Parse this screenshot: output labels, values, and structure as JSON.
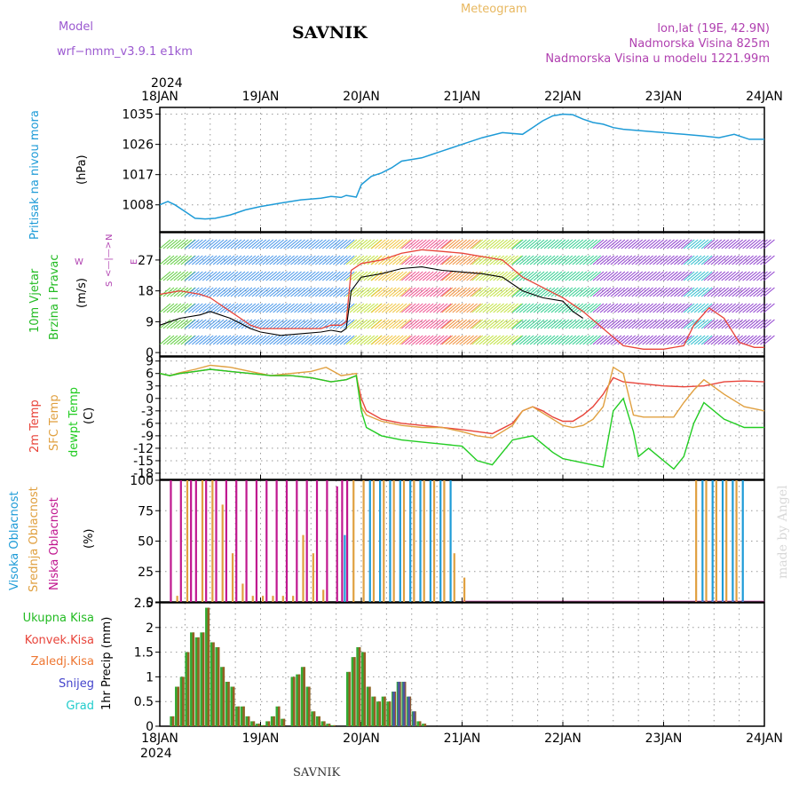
{
  "header": {
    "model_label": "Model",
    "model_name": "wrf−nmm_v3.9.1  e1km",
    "station": "SAVNIK",
    "product": "Meteogram",
    "coords": "lon,lat (19E, 42.9N)",
    "elevation": "Nadmorska Visina 825m",
    "model_elevation": "Nadmorska Visina u modelu 1221.99m",
    "year_top": "2024",
    "year_bottom": "2024",
    "footer_station": "SAVNIK",
    "watermark": "made by Angel"
  },
  "colors": {
    "pressure": "#1e9bd7",
    "temp2m": "#e8443a",
    "sfc": "#e0a040",
    "dewpt": "#22cc22",
    "high_cloud": "#1e9bd7",
    "mid_cloud": "#e0a040",
    "low_cloud": "#c0178f",
    "total_precip": "#33aa33",
    "conv_precip": "#e8443a",
    "frozen": "#ee7733",
    "snow": "#4444cc",
    "hail": "#22cccc"
  },
  "chart_data": [
    {
      "type": "line",
      "name": "pressure",
      "ylabel_1": "Pritisak na nivou mora",
      "ylabel_2": "(hPa)",
      "x_ticks": [
        "18JAN",
        "19JAN",
        "20JAN",
        "21JAN",
        "22JAN",
        "23JAN",
        "24JAN"
      ],
      "xlim_days": [
        0,
        6
      ],
      "ylim": [
        1000,
        1037
      ],
      "y_ticks": [
        "1008",
        "1017",
        "1026",
        "1035"
      ],
      "series": [
        {
          "color_key": "pressure",
          "x": [
            0,
            0.08,
            0.15,
            0.25,
            0.35,
            0.45,
            0.55,
            0.7,
            0.85,
            1.0,
            1.2,
            1.4,
            1.6,
            1.7,
            1.8,
            1.85,
            1.95,
            2.0,
            2.1,
            2.2,
            2.3,
            2.4,
            2.5,
            2.6,
            2.7,
            2.8,
            3.0,
            3.2,
            3.4,
            3.6,
            3.7,
            3.8,
            3.9,
            4.0,
            4.1,
            4.2,
            4.3,
            4.4,
            4.5,
            4.6,
            4.8,
            5.0,
            5.2,
            5.4,
            5.55,
            5.7,
            5.85,
            6.0
          ],
          "y": [
            1008,
            1009,
            1008,
            1006,
            1004,
            1003.8,
            1004,
            1005,
            1006.5,
            1007.5,
            1008.5,
            1009.5,
            1010,
            1010.5,
            1010.2,
            1010.8,
            1010.3,
            1014,
            1016.5,
            1017.5,
            1019,
            1021,
            1021.5,
            1022,
            1023,
            1024,
            1026,
            1028,
            1029.5,
            1029,
            1031,
            1033,
            1034.5,
            1035,
            1034.8,
            1033.5,
            1032.5,
            1032,
            1031,
            1030.5,
            1030,
            1029.5,
            1029,
            1028.5,
            1028,
            1029,
            1027.5,
            1027.5
          ]
        }
      ]
    },
    {
      "type": "line",
      "name": "wind",
      "ylabel_1": "10m Vjetar",
      "ylabel_2": "Brzina i Pravac",
      "ylabel_3": "(m/s)",
      "compass_n": "N",
      "compass_s": "S",
      "compass_w": "W",
      "compass_e": "E",
      "ylim": [
        -1,
        35
      ],
      "y_ticks": [
        "0",
        "9",
        "18",
        "27"
      ],
      "series": [
        {
          "name": "avg",
          "color": "#000000",
          "x": [
            0,
            0.2,
            0.4,
            0.5,
            0.6,
            0.7,
            0.8,
            0.9,
            1.0,
            1.2,
            1.4,
            1.6,
            1.7,
            1.8,
            1.85,
            1.9,
            2.0,
            2.2,
            2.4,
            2.6,
            2.8,
            3.0,
            3.2,
            3.4,
            3.6,
            3.8,
            4.0,
            4.1,
            4.2
          ],
          "y": [
            8,
            10,
            11,
            12,
            11,
            10,
            8.5,
            7,
            6,
            5,
            5.5,
            6,
            6.5,
            6,
            7,
            18,
            22,
            23,
            24.5,
            25,
            24,
            23.5,
            23,
            22,
            18,
            16,
            15,
            12,
            10
          ]
        },
        {
          "name": "gust",
          "color": "#e8443a",
          "x": [
            0,
            0.2,
            0.4,
            0.5,
            0.6,
            0.7,
            0.8,
            0.9,
            1.0,
            1.2,
            1.4,
            1.6,
            1.7,
            1.8,
            1.85,
            1.9,
            2.0,
            2.2,
            2.4,
            2.6,
            2.8,
            3.0,
            3.2,
            3.4,
            3.6,
            3.8,
            4.0,
            4.2,
            4.4,
            4.6,
            4.8,
            5.0,
            5.2,
            5.3,
            5.45,
            5.6,
            5.75,
            5.9,
            6.0
          ],
          "y": [
            17,
            18,
            17,
            16,
            14,
            12,
            10,
            8,
            7,
            7,
            7,
            7,
            8,
            8,
            9,
            24,
            26,
            27,
            29,
            30,
            29.5,
            29,
            28,
            27,
            22,
            19,
            16,
            12,
            7,
            2,
            1,
            1,
            2,
            8,
            13,
            10,
            3,
            1.5,
            1.5
          ]
        }
      ]
    },
    {
      "type": "line",
      "name": "temperature",
      "ylabel_1": "2m Temp",
      "ylabel_2": "SFC Temp",
      "ylabel_3": "dewpt Temp",
      "ylabel_4": "(C)",
      "ylim": [
        -19.5,
        10
      ],
      "y_ticks": [
        "-18",
        "-15",
        "-12",
        "-9",
        "-6",
        "-3",
        "0",
        "3",
        "6",
        "9"
      ],
      "series": [
        {
          "name": "2m",
          "color_key": "temp2m",
          "x": [
            0,
            0.1,
            0.2,
            0.35,
            0.5,
            0.7,
            0.9,
            1.1,
            1.3,
            1.5,
            1.7,
            1.85,
            1.95,
            2.0,
            2.05,
            2.2,
            2.4,
            2.6,
            2.8,
            3.0,
            3.15,
            3.3,
            3.5,
            3.6,
            3.7,
            3.8,
            3.9,
            4.0,
            4.1,
            4.2,
            4.3,
            4.4,
            4.5,
            4.6,
            4.8,
            5.0,
            5.2,
            5.4,
            5.6,
            5.8,
            6.0
          ],
          "y": [
            6,
            5.5,
            6,
            6.5,
            7,
            6.5,
            6,
            5.5,
            5.5,
            5,
            4,
            4.5,
            5.5,
            0,
            -3,
            -5,
            -6,
            -6.5,
            -7,
            -7.5,
            -8,
            -8.5,
            -6,
            -3,
            -2,
            -3,
            -4.5,
            -5.5,
            -5.5,
            -4,
            -2,
            1,
            5,
            4,
            3.5,
            3,
            2.8,
            3,
            4,
            4.2,
            4
          ]
        },
        {
          "name": "sfc",
          "color_key": "sfc",
          "x": [
            0,
            0.1,
            0.2,
            0.35,
            0.5,
            0.7,
            0.9,
            1.1,
            1.3,
            1.5,
            1.65,
            1.8,
            1.95,
            2.0,
            2.05,
            2.2,
            2.4,
            2.6,
            2.8,
            3.0,
            3.15,
            3.3,
            3.5,
            3.6,
            3.7,
            3.8,
            3.9,
            4.0,
            4.1,
            4.2,
            4.3,
            4.4,
            4.5,
            4.6,
            4.7,
            4.8,
            5.0,
            5.1,
            5.2,
            5.3,
            5.4,
            5.6,
            5.8,
            6.0
          ],
          "y": [
            6,
            5.5,
            6.2,
            7,
            8,
            7.5,
            6.5,
            5.5,
            6,
            6.5,
            7.5,
            5.5,
            6,
            -2,
            -4,
            -5.5,
            -6.5,
            -7,
            -7,
            -8,
            -9,
            -9.5,
            -6.5,
            -3,
            -2,
            -3.5,
            -5,
            -6.5,
            -7,
            -6.5,
            -5,
            -2,
            7.5,
            6,
            -4,
            -4.5,
            -4.5,
            -4.5,
            -1,
            2,
            4.5,
            1,
            -2,
            -3
          ]
        },
        {
          "name": "dewpt",
          "color_key": "dewpt",
          "x": [
            0,
            0.1,
            0.2,
            0.35,
            0.5,
            0.7,
            0.9,
            1.1,
            1.3,
            1.5,
            1.7,
            1.85,
            1.95,
            2.0,
            2.05,
            2.2,
            2.4,
            2.6,
            2.8,
            3.0,
            3.15,
            3.3,
            3.5,
            3.6,
            3.7,
            3.8,
            3.9,
            4.0,
            4.2,
            4.4,
            4.5,
            4.6,
            4.7,
            4.75,
            4.85,
            5.0,
            5.1,
            5.2,
            5.3,
            5.4,
            5.6,
            5.8,
            6.0
          ],
          "y": [
            6,
            5.5,
            6,
            6.5,
            7,
            6.5,
            6,
            5.5,
            5.5,
            5,
            4,
            4.5,
            5.5,
            -3,
            -7,
            -9,
            -10,
            -10.5,
            -11,
            -11.5,
            -15,
            -16,
            -10,
            -9.5,
            -9,
            -11,
            -13,
            -14.5,
            -15.5,
            -16.5,
            -3,
            0,
            -8,
            -14,
            -12,
            -15,
            -17,
            -14,
            -6,
            -1,
            -5,
            -7,
            -7
          ]
        }
      ]
    },
    {
      "type": "bar",
      "name": "clouds",
      "ylabel_1": "Visoka Oblacnost",
      "ylabel_2": "Srednja Oblacnost",
      "ylabel_3": "Niska Oblacnost",
      "ylabel_4": "(%)",
      "ylim": [
        0,
        100
      ],
      "y_ticks": [
        "0",
        "25",
        "50",
        "75",
        "100"
      ],
      "low_x": [
        0.1,
        0.2,
        0.3,
        0.35,
        0.45,
        0.55,
        0.65,
        0.75,
        0.85,
        0.95,
        1.05,
        1.15,
        1.25,
        1.35,
        1.45,
        1.55,
        1.65,
        1.75,
        1.8,
        1.85
      ],
      "low_y": [
        100,
        100,
        100,
        100,
        100,
        100,
        100,
        100,
        100,
        100,
        100,
        100,
        100,
        100,
        100,
        100,
        100,
        95,
        100,
        100
      ],
      "mid_x": [
        0.15,
        0.25,
        0.4,
        0.5,
        0.6,
        0.7,
        0.8,
        0.9,
        1.0,
        1.1,
        1.2,
        1.3,
        1.4,
        1.5,
        1.6,
        1.9,
        2.0,
        2.1,
        2.2,
        2.3,
        2.4,
        2.5,
        2.6,
        2.7,
        2.8,
        2.9,
        3.0,
        5.3,
        5.4,
        5.5,
        5.6,
        5.7
      ],
      "mid_y": [
        5,
        100,
        100,
        100,
        80,
        40,
        15,
        5,
        5,
        5,
        5,
        5,
        55,
        40,
        10,
        100,
        100,
        100,
        100,
        100,
        100,
        100,
        100,
        100,
        100,
        40,
        20,
        100,
        100,
        100,
        100,
        100
      ],
      "high_x": [
        1.8,
        2.05,
        2.15,
        2.25,
        2.35,
        2.45,
        2.55,
        2.65,
        2.75,
        2.85,
        5.35,
        5.45,
        5.55,
        5.65,
        5.75
      ],
      "high_y": [
        55,
        100,
        100,
        100,
        100,
        100,
        100,
        100,
        100,
        100,
        100,
        100,
        100,
        100,
        100
      ]
    },
    {
      "type": "bar",
      "name": "precip",
      "ylabel_1": "Ukupna Kisa",
      "ylabel_2": "Konvek.Kisa",
      "ylabel_3": "Zaledj.Kisa",
      "ylabel_4": "Snijeg",
      "ylabel_5": "Grad",
      "ylabel_6": "1hr Precip (mm)",
      "ylim": [
        0,
        2.5
      ],
      "y_ticks": [
        "0",
        "0.5",
        "1",
        "1.5",
        "2",
        "2.5"
      ],
      "x": [
        0.1,
        0.15,
        0.2,
        0.25,
        0.3,
        0.35,
        0.4,
        0.45,
        0.5,
        0.55,
        0.6,
        0.65,
        0.7,
        0.75,
        0.8,
        0.85,
        0.9,
        0.95,
        1.0,
        1.05,
        1.1,
        1.15,
        1.2,
        1.3,
        1.35,
        1.4,
        1.45,
        1.5,
        1.55,
        1.6,
        1.65,
        1.7,
        1.85,
        1.9,
        1.95,
        2.0,
        2.05,
        2.1,
        2.15,
        2.2,
        2.25,
        2.3,
        2.35,
        2.4,
        2.45,
        2.5,
        2.55,
        2.6
      ],
      "y": [
        0.2,
        0.8,
        1.0,
        1.5,
        1.9,
        1.8,
        1.9,
        2.4,
        1.7,
        1.6,
        1.2,
        0.9,
        0.8,
        0.4,
        0.4,
        0.2,
        0.1,
        0.05,
        0.02,
        0.1,
        0.2,
        0.4,
        0.15,
        1.0,
        1.05,
        1.2,
        0.8,
        0.3,
        0.2,
        0.1,
        0.05,
        0.02,
        1.1,
        1.4,
        1.6,
        1.5,
        0.8,
        0.6,
        0.5,
        0.6,
        0.5,
        0.7,
        0.9,
        0.9,
        0.6,
        0.3,
        0.1,
        0.05
      ],
      "snow_x": [
        2.3,
        2.35,
        2.4,
        2.45,
        2.5
      ],
      "snow_y": [
        0.7,
        0.9,
        0.9,
        0.6,
        0.3
      ]
    }
  ]
}
